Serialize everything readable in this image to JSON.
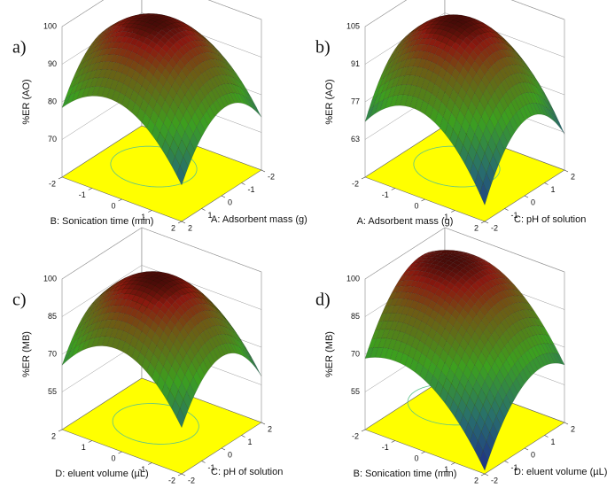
{
  "chart_data": [
    {
      "type": "surface",
      "label": "a)",
      "zlabel": "%ER (AO)",
      "zlim": [
        60,
        100
      ],
      "zticks": [
        70,
        80,
        90,
        100
      ],
      "xlabel": "B: Sonication time (min)",
      "xlim": [
        -2,
        2
      ],
      "xticks": [
        -2,
        -1,
        0,
        1,
        2
      ],
      "ylabel": "A: Adsorbent mass (g)",
      "ylim": [
        2,
        -2
      ],
      "yticks": [
        2,
        1,
        0,
        -1,
        -2
      ]
    },
    {
      "type": "surface",
      "label": "b)",
      "zlabel": "%ER (AO)",
      "zlim": [
        49,
        105
      ],
      "zticks": [
        63,
        77,
        91,
        105
      ],
      "xlabel": "A: Adsorbent mass (g)",
      "xlim": [
        -2,
        2
      ],
      "xticks": [
        -2,
        -1,
        0,
        1,
        2
      ],
      "ylabel": "C: pH of solution",
      "ylim": [
        -2,
        2
      ],
      "yticks": [
        -2,
        -1,
        0,
        1,
        2
      ]
    },
    {
      "type": "surface",
      "label": "c)",
      "zlabel": "%ER (MB)",
      "zlim": [
        40,
        100
      ],
      "zticks": [
        55,
        70,
        85,
        100
      ],
      "xlabel": "D: eluent volume (µL)",
      "xlim": [
        2,
        -2
      ],
      "xticks": [
        2,
        1,
        0,
        -1,
        -2
      ],
      "ylabel": "C: pH of solution",
      "ylim": [
        -2,
        2
      ],
      "yticks": [
        -2,
        -1,
        0,
        1,
        2
      ]
    },
    {
      "type": "surface",
      "label": "d)",
      "zlabel": "%ER (MB)",
      "zlim": [
        40,
        100
      ],
      "zticks": [
        55,
        70,
        85,
        100
      ],
      "xlabel": "B: Sonication time (min)",
      "xlim": [
        -2,
        2
      ],
      "xticks": [
        -2,
        -1,
        0,
        1,
        2
      ],
      "ylabel": "D: eluent volume (µL)",
      "ylim": [
        -2,
        2
      ],
      "yticks": [
        -2,
        -1,
        0,
        1,
        2
      ]
    }
  ]
}
